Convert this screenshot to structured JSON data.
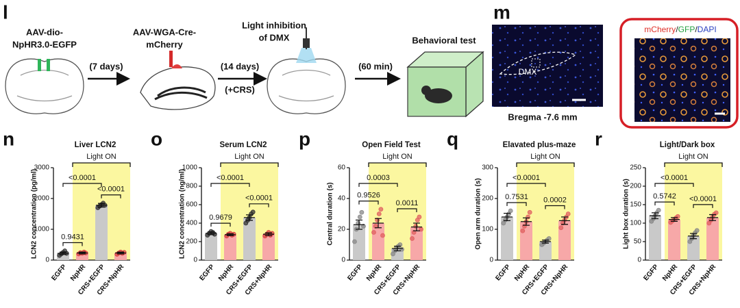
{
  "schematic": {
    "letter": "l",
    "virus1": [
      "AAV-dio-",
      "NpHR3.0-EGFP"
    ],
    "wait1": "(7 days)",
    "virus2": [
      "AAV-WGA-Cre-",
      "mCherry"
    ],
    "light": [
      "Light inhibition",
      "of DMX"
    ],
    "wait2": [
      "(14 days)",
      "(+CRS)"
    ],
    "wait3": "(60 min)",
    "test": "Behavioral test"
  },
  "histology": {
    "letter": "m",
    "region": "DMX",
    "bregma": "Bregma -7.6 mm",
    "stain": [
      "mCherry",
      "/",
      "GFP",
      "/",
      "DAPI"
    ]
  },
  "chart_data": [
    {
      "type": "bar",
      "panel": "n",
      "title": "Liver LCN2",
      "ylabel": "LCN2 concentration (pg/ml)",
      "categories": [
        "EGFP",
        "NpHR",
        "CRS+EGFP",
        "CRS+NpHR"
      ],
      "values": [
        220,
        230,
        1780,
        230
      ],
      "errors": [
        40,
        30,
        60,
        30
      ],
      "points": [
        [
          150,
          200,
          250,
          300,
          220
        ],
        [
          200,
          240,
          220,
          260,
          230
        ],
        [
          1700,
          1750,
          1800,
          1850,
          1780
        ],
        [
          190,
          230,
          260,
          220,
          250
        ]
      ],
      "colors": [
        "#c9c9c9",
        "#f7a8a8",
        "#c9c9c9",
        "#f7a8a8"
      ],
      "point_colors": [
        "#333333",
        "#d94040",
        "#333333",
        "#d94040"
      ],
      "ylim": [
        0,
        3000
      ],
      "yticks": [
        0,
        1000,
        2000,
        3000
      ],
      "shade_label": "Light ON",
      "shade_color": "#fbf7a0",
      "comparisons": [
        "0.9431",
        "<0.0001",
        "<0.0001"
      ]
    },
    {
      "type": "bar",
      "panel": "o",
      "title": "Serum LCN2",
      "ylabel": "LCN2 concentration (ng/ml)",
      "categories": [
        "EGFP",
        "NpHR",
        "CRS+EGFP",
        "CRS+NpHR"
      ],
      "values": [
        290,
        275,
        460,
        280
      ],
      "errors": [
        15,
        10,
        30,
        15
      ],
      "points": [
        [
          270,
          290,
          310,
          300,
          280
        ],
        [
          260,
          280,
          290,
          270,
          280
        ],
        [
          400,
          430,
          460,
          500,
          520
        ],
        [
          260,
          280,
          300,
          270,
          290
        ]
      ],
      "colors": [
        "#c9c9c9",
        "#f7a8a8",
        "#c9c9c9",
        "#f7a8a8"
      ],
      "point_colors": [
        "#333333",
        "#d94040",
        "#333333",
        "#d94040"
      ],
      "ylim": [
        0,
        1000
      ],
      "yticks": [
        0,
        200,
        400,
        600,
        800,
        1000
      ],
      "shade_label": "Light ON",
      "shade_color": "#fbf7a0",
      "comparisons": [
        "0.9679",
        "<0.0001",
        "<0.0001"
      ]
    },
    {
      "type": "bar",
      "panel": "p",
      "title": "Open Field Test",
      "ylabel": "Central duration (s)",
      "categories": [
        "EGFP",
        "NpHR",
        "CRS+EGFP",
        "CRS+NpHR"
      ],
      "values": [
        23,
        24,
        7.5,
        21.5
      ],
      "errors": [
        3,
        3,
        1.5,
        2.5
      ],
      "points": [
        [
          12,
          20,
          24,
          28,
          31,
          22
        ],
        [
          18,
          22,
          26,
          30,
          33,
          16
        ],
        [
          4,
          6,
          8,
          9,
          10,
          7
        ],
        [
          14,
          18,
          22,
          26,
          28,
          20
        ]
      ],
      "colors": [
        "#c9c9c9",
        "#f7a8a8",
        "#c9c9c9",
        "#f7a8a8"
      ],
      "point_colors": [
        "#888888",
        "#e06060",
        "#888888",
        "#e06060"
      ],
      "ylim": [
        0,
        60
      ],
      "yticks": [
        0,
        20,
        40,
        60
      ],
      "shade_label": "Light ON",
      "shade_color": "#fbf7a0",
      "comparisons": [
        "0.9526",
        "0.0003",
        "0.0011"
      ]
    },
    {
      "type": "bar",
      "panel": "q",
      "title": "Elavated plus-maze",
      "ylabel": "Open arm duration (s)",
      "categories": [
        "EGFP",
        "NpHR",
        "CRS+EGFP",
        "CRS+NpHR"
      ],
      "values": [
        140,
        125,
        60,
        128
      ],
      "errors": [
        12,
        12,
        5,
        12
      ],
      "points": [
        [
          120,
          130,
          140,
          150,
          160
        ],
        [
          95,
          110,
          125,
          140,
          155
        ],
        [
          50,
          55,
          60,
          65,
          70
        ],
        [
          105,
          120,
          130,
          140,
          150
        ]
      ],
      "colors": [
        "#c9c9c9",
        "#f7a8a8",
        "#c9c9c9",
        "#f7a8a8"
      ],
      "point_colors": [
        "#888888",
        "#e06060",
        "#888888",
        "#e06060"
      ],
      "ylim": [
        0,
        300
      ],
      "yticks": [
        0,
        100,
        200,
        300
      ],
      "shade_label": "Light ON",
      "shade_color": "#fbf7a0",
      "comparisons": [
        "0.7531",
        "<0.0001",
        "0.0002"
      ]
    },
    {
      "type": "bar",
      "panel": "r",
      "title": "Light/Dark box",
      "ylabel": "Light box duration (s)",
      "categories": [
        "EGFP",
        "NpHR",
        "CRS+EGFP",
        "CRS+NpHR"
      ],
      "values": [
        120,
        110,
        65,
        115
      ],
      "errors": [
        8,
        5,
        7,
        8
      ],
      "points": [
        [
          105,
          112,
          120,
          128,
          135
        ],
        [
          102,
          106,
          110,
          114,
          118
        ],
        [
          50,
          58,
          66,
          74,
          80
        ],
        [
          100,
          108,
          116,
          124,
          128
        ]
      ],
      "colors": [
        "#c9c9c9",
        "#f7a8a8",
        "#c9c9c9",
        "#f7a8a8"
      ],
      "point_colors": [
        "#888888",
        "#e06060",
        "#888888",
        "#e06060"
      ],
      "ylim": [
        0,
        250
      ],
      "yticks": [
        0,
        50,
        100,
        150,
        200,
        250
      ],
      "shade_label": "Light ON",
      "shade_color": "#fbf7a0",
      "comparisons": [
        "0.5742",
        "<0.0001",
        "<0.0001"
      ]
    }
  ]
}
